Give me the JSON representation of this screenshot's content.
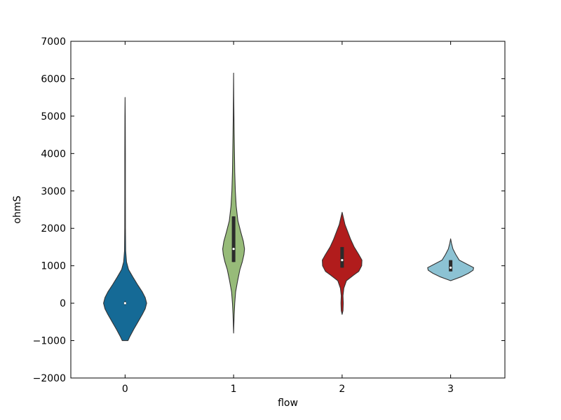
{
  "chart_data": {
    "type": "violin",
    "xlabel": "flow",
    "ylabel": "ohmS",
    "ylim": [
      -2000,
      7000
    ],
    "yticks": [
      -2000,
      -1000,
      0,
      1000,
      2000,
      3000,
      4000,
      5000,
      6000,
      7000
    ],
    "ytick_labels": [
      "−2000",
      "−1000",
      "0",
      "1000",
      "2000",
      "3000",
      "4000",
      "5000",
      "6000",
      "7000"
    ],
    "categories": [
      "0",
      "1",
      "2",
      "3"
    ],
    "violins": [
      {
        "category": "0",
        "color": "#156a96",
        "q1": -10,
        "median": 0,
        "q3": 10,
        "whisker_low": -50,
        "whisker_high": 60,
        "profile": [
          [
            -1000,
            0.1
          ],
          [
            -900,
            0.16
          ],
          [
            -700,
            0.3
          ],
          [
            -500,
            0.45
          ],
          [
            -300,
            0.6
          ],
          [
            -150,
            0.7
          ],
          [
            0,
            0.75
          ],
          [
            150,
            0.7
          ],
          [
            300,
            0.6
          ],
          [
            500,
            0.43
          ],
          [
            700,
            0.27
          ],
          [
            900,
            0.12
          ],
          [
            1100,
            0.05
          ],
          [
            1400,
            0.02
          ],
          [
            2000,
            0.012
          ],
          [
            3000,
            0.01
          ],
          [
            4000,
            0.01
          ],
          [
            5000,
            0.006
          ],
          [
            5500,
            0.0
          ]
        ]
      },
      {
        "category": "1",
        "color": "#97bb79",
        "q1": 1100,
        "median": 1450,
        "q3": 2320,
        "whisker_low": 1100,
        "whisker_high": 2320,
        "profile": [
          [
            -800,
            0.0
          ],
          [
            -600,
            0.008
          ],
          [
            -300,
            0.02
          ],
          [
            0,
            0.04
          ],
          [
            300,
            0.07
          ],
          [
            600,
            0.14
          ],
          [
            900,
            0.22
          ],
          [
            1100,
            0.3
          ],
          [
            1300,
            0.36
          ],
          [
            1450,
            0.38
          ],
          [
            1650,
            0.34
          ],
          [
            1900,
            0.25
          ],
          [
            2200,
            0.15
          ],
          [
            2600,
            0.09
          ],
          [
            3000,
            0.06
          ],
          [
            3500,
            0.04
          ],
          [
            4000,
            0.03
          ],
          [
            4500,
            0.02
          ],
          [
            5000,
            0.012
          ],
          [
            5500,
            0.006
          ],
          [
            6150,
            0.0
          ]
        ]
      },
      {
        "category": "2",
        "color": "#b11c1c",
        "q1": 950,
        "median": 1150,
        "q3": 1500,
        "whisker_low": 950,
        "whisker_high": 1500,
        "profile": [
          [
            -300,
            0.0
          ],
          [
            -200,
            0.03
          ],
          [
            0,
            0.04
          ],
          [
            200,
            0.03
          ],
          [
            400,
            0.06
          ],
          [
            600,
            0.15
          ],
          [
            750,
            0.4
          ],
          [
            850,
            0.58
          ],
          [
            1000,
            0.68
          ],
          [
            1150,
            0.69
          ],
          [
            1300,
            0.58
          ],
          [
            1500,
            0.42
          ],
          [
            1700,
            0.3
          ],
          [
            1900,
            0.2
          ],
          [
            2100,
            0.1
          ],
          [
            2300,
            0.04
          ],
          [
            2430,
            0.0
          ]
        ]
      },
      {
        "category": "3",
        "color": "#8cc2d3",
        "q1": 850,
        "median": 950,
        "q3": 1150,
        "whisker_low": 850,
        "whisker_high": 1150,
        "profile": [
          [
            600,
            0.0
          ],
          [
            700,
            0.35
          ],
          [
            800,
            0.62
          ],
          [
            880,
            0.78
          ],
          [
            950,
            0.8
          ],
          [
            1050,
            0.55
          ],
          [
            1150,
            0.3
          ],
          [
            1300,
            0.18
          ],
          [
            1450,
            0.08
          ],
          [
            1600,
            0.03
          ],
          [
            1720,
            0.0
          ]
        ]
      }
    ]
  }
}
